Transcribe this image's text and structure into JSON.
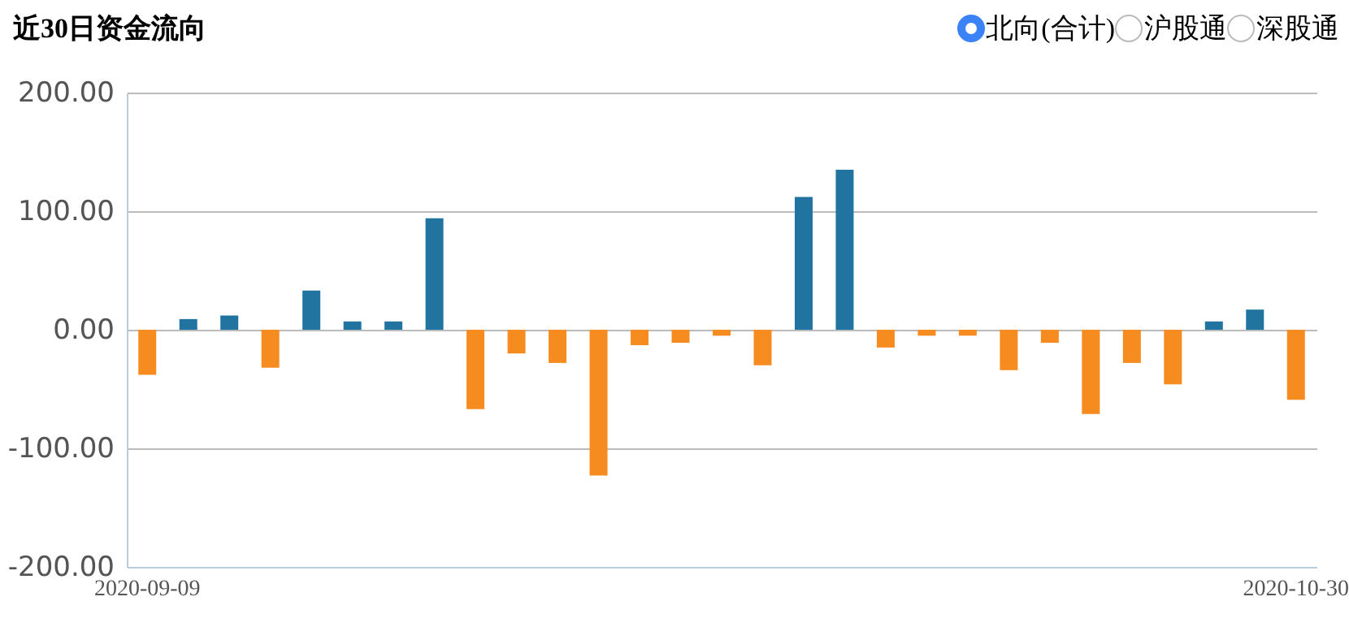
{
  "chart_data": {
    "type": "bar",
    "title": "近30日资金流向",
    "annotations": [
      "北向(合计)",
      "沪股通",
      "深股通"
    ],
    "categories": [
      "2020-09-09",
      null,
      null,
      null,
      null,
      null,
      null,
      null,
      null,
      null,
      null,
      null,
      null,
      null,
      null,
      null,
      null,
      null,
      null,
      null,
      null,
      null,
      null,
      null,
      null,
      null,
      null,
      null,
      "2020-10-30"
    ],
    "values": [
      -38,
      9,
      12,
      -32,
      33,
      7,
      7,
      94,
      -67,
      -20,
      -28,
      -123,
      -13,
      -11,
      -5,
      -30,
      112,
      135,
      -15,
      -5,
      -5,
      -34,
      -11,
      -71,
      -28,
      -46,
      7,
      17,
      -59
    ],
    "colors": [
      "#f68b1f",
      "#21749f",
      "#21749f",
      "#f68b1f",
      "#21749f",
      "#21749f",
      "#21749f",
      "#21749f",
      "#f68b1f",
      "#f68b1f",
      "#f68b1f",
      "#f68b1f",
      "#f68b1f",
      "#f68b1f",
      "#f68b1f",
      "#f68b1f",
      "#21749f",
      "#21749f",
      "#f68b1f",
      "#f68b1f",
      "#f68b1f",
      "#f68b1f",
      "#f68b1f",
      "#f68b1f",
      "#f68b1f",
      "#f68b1f",
      "#21749f",
      "#21749f",
      "#f68b1f"
    ],
    "ylim": [
      -200,
      200
    ],
    "yticks": [
      {
        "value": -200,
        "label": "-200.00"
      },
      {
        "value": -100,
        "label": "-100.00"
      },
      {
        "value": 0,
        "label": "0.00"
      },
      {
        "value": 100,
        "label": "100.00"
      },
      {
        "value": 200,
        "label": "200.00"
      }
    ],
    "grid": "y"
  }
}
